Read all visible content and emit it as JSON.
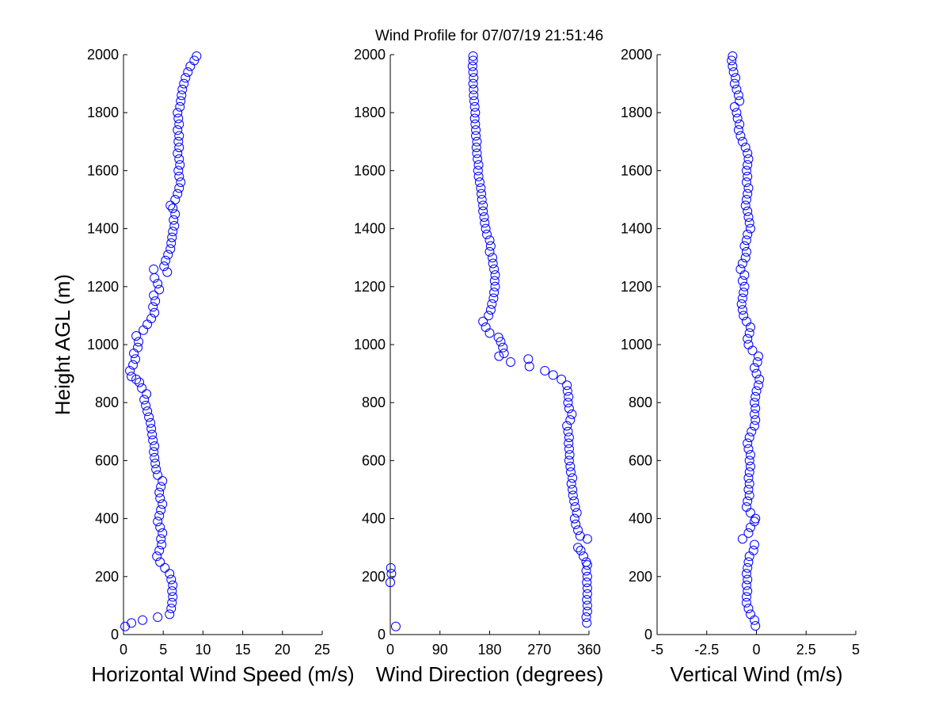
{
  "title": "Wind Profile for  07/07/19 21:51:46",
  "chart_data": [
    {
      "type": "scatter",
      "name": "horizontal-wind-speed",
      "xlabel": "Horizontal Wind Speed (m/s)",
      "ylabel": "Height AGL (m)",
      "xlim": [
        0,
        25
      ],
      "ylim": [
        0,
        2000
      ],
      "xticks": [
        0,
        5,
        10,
        15,
        20,
        25
      ],
      "xtick_labels": [
        "0",
        "5",
        "10",
        "15",
        "20",
        "25"
      ],
      "yticks": [
        0,
        200,
        400,
        600,
        800,
        1000,
        1200,
        1400,
        1600,
        1800,
        2000
      ],
      "ytick_labels": [
        "0",
        "200",
        "400",
        "600",
        "800",
        "1000",
        "1200",
        "1400",
        "1600",
        "1800",
        "2000"
      ],
      "marker_color": "#0000ff",
      "points": [
        [
          0.2,
          28
        ],
        [
          1.0,
          40
        ],
        [
          2.4,
          50
        ],
        [
          4.3,
          60
        ],
        [
          5.8,
          70
        ],
        [
          6.0,
          90
        ],
        [
          6.1,
          110
        ],
        [
          6.2,
          130
        ],
        [
          6.1,
          150
        ],
        [
          6.2,
          170
        ],
        [
          6.0,
          190
        ],
        [
          5.8,
          210
        ],
        [
          5.2,
          230
        ],
        [
          4.6,
          250
        ],
        [
          4.2,
          270
        ],
        [
          4.5,
          290
        ],
        [
          4.8,
          310
        ],
        [
          4.7,
          330
        ],
        [
          4.9,
          350
        ],
        [
          4.6,
          370
        ],
        [
          4.3,
          390
        ],
        [
          4.5,
          410
        ],
        [
          4.7,
          430
        ],
        [
          4.9,
          450
        ],
        [
          4.6,
          470
        ],
        [
          4.5,
          490
        ],
        [
          4.7,
          510
        ],
        [
          4.9,
          530
        ],
        [
          4.3,
          550
        ],
        [
          4.1,
          570
        ],
        [
          4.0,
          590
        ],
        [
          3.9,
          610
        ],
        [
          3.8,
          630
        ],
        [
          3.9,
          650
        ],
        [
          3.7,
          670
        ],
        [
          3.6,
          690
        ],
        [
          3.5,
          710
        ],
        [
          3.4,
          730
        ],
        [
          3.2,
          750
        ],
        [
          3.0,
          770
        ],
        [
          2.8,
          790
        ],
        [
          2.6,
          810
        ],
        [
          2.9,
          830
        ],
        [
          2.3,
          850
        ],
        [
          2.0,
          870
        ],
        [
          1.6,
          880
        ],
        [
          1.0,
          890
        ],
        [
          0.8,
          910
        ],
        [
          1.2,
          930
        ],
        [
          1.5,
          950
        ],
        [
          1.3,
          970
        ],
        [
          1.8,
          990
        ],
        [
          1.9,
          1010
        ],
        [
          1.6,
          1030
        ],
        [
          2.5,
          1050
        ],
        [
          3.0,
          1070
        ],
        [
          3.5,
          1090
        ],
        [
          3.9,
          1110
        ],
        [
          3.7,
          1130
        ],
        [
          4.0,
          1150
        ],
        [
          3.8,
          1170
        ],
        [
          4.5,
          1190
        ],
        [
          4.3,
          1210
        ],
        [
          3.9,
          1230
        ],
        [
          5.5,
          1250
        ],
        [
          3.8,
          1260
        ],
        [
          5.1,
          1270
        ],
        [
          5.3,
          1290
        ],
        [
          5.6,
          1310
        ],
        [
          5.9,
          1330
        ],
        [
          6.0,
          1350
        ],
        [
          6.1,
          1370
        ],
        [
          6.2,
          1390
        ],
        [
          6.4,
          1410
        ],
        [
          6.3,
          1430
        ],
        [
          6.5,
          1450
        ],
        [
          6.2,
          1470
        ],
        [
          5.9,
          1480
        ],
        [
          6.5,
          1500
        ],
        [
          6.8,
          1520
        ],
        [
          7.0,
          1540
        ],
        [
          7.2,
          1560
        ],
        [
          7.0,
          1580
        ],
        [
          6.9,
          1600
        ],
        [
          7.1,
          1620
        ],
        [
          7.0,
          1640
        ],
        [
          6.8,
          1660
        ],
        [
          7.0,
          1680
        ],
        [
          6.9,
          1700
        ],
        [
          7.0,
          1720
        ],
        [
          6.8,
          1740
        ],
        [
          7.0,
          1760
        ],
        [
          6.9,
          1780
        ],
        [
          6.8,
          1800
        ],
        [
          7.1,
          1820
        ],
        [
          7.2,
          1840
        ],
        [
          7.3,
          1860
        ],
        [
          7.4,
          1880
        ],
        [
          7.6,
          1900
        ],
        [
          7.8,
          1920
        ],
        [
          8.1,
          1940
        ],
        [
          8.4,
          1960
        ],
        [
          8.9,
          1980
        ],
        [
          9.2,
          1995
        ]
      ]
    },
    {
      "type": "scatter",
      "name": "wind-direction",
      "xlabel": "Wind Direction (degrees)",
      "ylabel": "",
      "xlim": [
        0,
        360
      ],
      "ylim": [
        0,
        2000
      ],
      "xticks": [
        0,
        90,
        180,
        270,
        360
      ],
      "xtick_labels": [
        "0",
        "90",
        "180",
        "270",
        "360"
      ],
      "yticks": [
        0,
        200,
        400,
        600,
        800,
        1000,
        1200,
        1400,
        1600,
        1800,
        2000
      ],
      "ytick_labels": [
        "0",
        "200",
        "400",
        "600",
        "800",
        "1000",
        "1200",
        "1400",
        "1600",
        "1800",
        "2000"
      ],
      "marker_color": "#0000ff",
      "points": [
        [
          10,
          28
        ],
        [
          356,
          40
        ],
        [
          355,
          60
        ],
        [
          357,
          80
        ],
        [
          357,
          100
        ],
        [
          356,
          120
        ],
        [
          357,
          140
        ],
        [
          357,
          160
        ],
        [
          356,
          180
        ],
        [
          357,
          200
        ],
        [
          355,
          220
        ],
        [
          357,
          240
        ],
        [
          355,
          250
        ],
        [
          350,
          270
        ],
        [
          345,
          290
        ],
        [
          340,
          300
        ],
        [
          357,
          330
        ],
        [
          344,
          340
        ],
        [
          340,
          360
        ],
        [
          336,
          380
        ],
        [
          334,
          400
        ],
        [
          338,
          420
        ],
        [
          335,
          440
        ],
        [
          333,
          460
        ],
        [
          331,
          480
        ],
        [
          330,
          500
        ],
        [
          328,
          520
        ],
        [
          330,
          540
        ],
        [
          327,
          560
        ],
        [
          326,
          580
        ],
        [
          324,
          600
        ],
        [
          325,
          620
        ],
        [
          324,
          640
        ],
        [
          323,
          660
        ],
        [
          324,
          680
        ],
        [
          322,
          700
        ],
        [
          320,
          720
        ],
        [
          326,
          740
        ],
        [
          329,
          760
        ],
        [
          324,
          780
        ],
        [
          322,
          800
        ],
        [
          323,
          820
        ],
        [
          321,
          840
        ],
        [
          320,
          860
        ],
        [
          310,
          880
        ],
        [
          295,
          895
        ],
        [
          280,
          910
        ],
        [
          252,
          925
        ],
        [
          250,
          950
        ],
        [
          218,
          940
        ],
        [
          197,
          960
        ],
        [
          206,
          970
        ],
        [
          204,
          990
        ],
        [
          200,
          1010
        ],
        [
          196,
          1025
        ],
        [
          180,
          1040
        ],
        [
          173,
          1060
        ],
        [
          168,
          1080
        ],
        [
          178,
          1100
        ],
        [
          182,
          1120
        ],
        [
          184,
          1140
        ],
        [
          187,
          1160
        ],
        [
          188,
          1180
        ],
        [
          190,
          1200
        ],
        [
          189,
          1220
        ],
        [
          190,
          1240
        ],
        [
          188,
          1260
        ],
        [
          186,
          1280
        ],
        [
          185,
          1300
        ],
        [
          180,
          1320
        ],
        [
          182,
          1340
        ],
        [
          180,
          1360
        ],
        [
          175,
          1380
        ],
        [
          173,
          1400
        ],
        [
          171,
          1420
        ],
        [
          170,
          1440
        ],
        [
          168,
          1460
        ],
        [
          168,
          1480
        ],
        [
          166,
          1500
        ],
        [
          165,
          1520
        ],
        [
          164,
          1540
        ],
        [
          162,
          1560
        ],
        [
          160,
          1580
        ],
        [
          159,
          1600
        ],
        [
          160,
          1620
        ],
        [
          158,
          1640
        ],
        [
          157,
          1660
        ],
        [
          156,
          1680
        ],
        [
          157,
          1700
        ],
        [
          155,
          1720
        ],
        [
          155,
          1740
        ],
        [
          154,
          1760
        ],
        [
          153,
          1780
        ],
        [
          154,
          1800
        ],
        [
          153,
          1820
        ],
        [
          152,
          1840
        ],
        [
          151,
          1860
        ],
        [
          151,
          1880
        ],
        [
          150,
          1900
        ],
        [
          151,
          1920
        ],
        [
          150,
          1940
        ],
        [
          149,
          1960
        ],
        [
          150,
          1980
        ],
        [
          150,
          1995
        ],
        [
          0,
          180
        ],
        [
          2,
          210
        ],
        [
          1,
          230
        ]
      ]
    },
    {
      "type": "scatter",
      "name": "vertical-wind",
      "xlabel": "Vertical Wind (m/s)",
      "ylabel": "",
      "xlim": [
        -5,
        5
      ],
      "ylim": [
        0,
        2000
      ],
      "xticks": [
        -5,
        -2.5,
        0,
        2.5,
        5
      ],
      "xtick_labels": [
        "-5",
        "-2.5",
        "0",
        "2.5",
        "5"
      ],
      "yticks": [
        0,
        200,
        400,
        600,
        800,
        1000,
        1200,
        1400,
        1600,
        1800,
        2000
      ],
      "ytick_labels": [
        "0",
        "200",
        "400",
        "600",
        "800",
        "1000",
        "1200",
        "1400",
        "1600",
        "1800",
        "2000"
      ],
      "marker_color": "#0000ff",
      "points": [
        [
          -0.05,
          30
        ],
        [
          -0.1,
          50
        ],
        [
          -0.3,
          70
        ],
        [
          -0.4,
          90
        ],
        [
          -0.5,
          110
        ],
        [
          -0.5,
          130
        ],
        [
          -0.45,
          150
        ],
        [
          -0.5,
          170
        ],
        [
          -0.45,
          190
        ],
        [
          -0.5,
          210
        ],
        [
          -0.45,
          230
        ],
        [
          -0.4,
          250
        ],
        [
          -0.35,
          270
        ],
        [
          -0.15,
          290
        ],
        [
          -0.1,
          310
        ],
        [
          -0.7,
          330
        ],
        [
          -0.4,
          350
        ],
        [
          -0.3,
          370
        ],
        [
          -0.1,
          390
        ],
        [
          -0.05,
          400
        ],
        [
          -0.3,
          420
        ],
        [
          -0.5,
          440
        ],
        [
          -0.45,
          460
        ],
        [
          -0.35,
          480
        ],
        [
          -0.4,
          500
        ],
        [
          -0.35,
          520
        ],
        [
          -0.4,
          540
        ],
        [
          -0.35,
          560
        ],
        [
          -0.3,
          580
        ],
        [
          -0.35,
          600
        ],
        [
          -0.3,
          620
        ],
        [
          -0.4,
          640
        ],
        [
          -0.45,
          660
        ],
        [
          -0.35,
          680
        ],
        [
          -0.25,
          700
        ],
        [
          -0.1,
          720
        ],
        [
          -0.05,
          740
        ],
        [
          -0.1,
          760
        ],
        [
          -0.05,
          780
        ],
        [
          -0.1,
          800
        ],
        [
          -0.05,
          820
        ],
        [
          0.0,
          840
        ],
        [
          0.1,
          860
        ],
        [
          0.15,
          880
        ],
        [
          0.0,
          900
        ],
        [
          -0.1,
          920
        ],
        [
          0.05,
          940
        ],
        [
          0.1,
          960
        ],
        [
          -0.2,
          980
        ],
        [
          -0.4,
          1000
        ],
        [
          -0.45,
          1020
        ],
        [
          -0.35,
          1040
        ],
        [
          -0.3,
          1060
        ],
        [
          -0.5,
          1080
        ],
        [
          -0.65,
          1100
        ],
        [
          -0.7,
          1120
        ],
        [
          -0.75,
          1140
        ],
        [
          -0.7,
          1160
        ],
        [
          -0.65,
          1180
        ],
        [
          -0.6,
          1200
        ],
        [
          -0.7,
          1220
        ],
        [
          -0.6,
          1240
        ],
        [
          -0.8,
          1260
        ],
        [
          -0.7,
          1280
        ],
        [
          -0.55,
          1300
        ],
        [
          -0.5,
          1320
        ],
        [
          -0.6,
          1340
        ],
        [
          -0.5,
          1360
        ],
        [
          -0.45,
          1380
        ],
        [
          -0.3,
          1400
        ],
        [
          -0.35,
          1420
        ],
        [
          -0.4,
          1440
        ],
        [
          -0.45,
          1460
        ],
        [
          -0.55,
          1480
        ],
        [
          -0.5,
          1500
        ],
        [
          -0.45,
          1520
        ],
        [
          -0.4,
          1540
        ],
        [
          -0.5,
          1560
        ],
        [
          -0.45,
          1580
        ],
        [
          -0.5,
          1600
        ],
        [
          -0.45,
          1620
        ],
        [
          -0.4,
          1640
        ],
        [
          -0.45,
          1660
        ],
        [
          -0.55,
          1680
        ],
        [
          -0.7,
          1700
        ],
        [
          -0.8,
          1720
        ],
        [
          -0.9,
          1740
        ],
        [
          -0.85,
          1760
        ],
        [
          -0.95,
          1780
        ],
        [
          -1.0,
          1800
        ],
        [
          -1.1,
          1820
        ],
        [
          -0.85,
          1840
        ],
        [
          -0.9,
          1860
        ],
        [
          -1.0,
          1880
        ],
        [
          -1.1,
          1900
        ],
        [
          -1.05,
          1920
        ],
        [
          -1.15,
          1940
        ],
        [
          -1.2,
          1960
        ],
        [
          -1.25,
          1980
        ],
        [
          -1.2,
          1995
        ]
      ]
    }
  ]
}
